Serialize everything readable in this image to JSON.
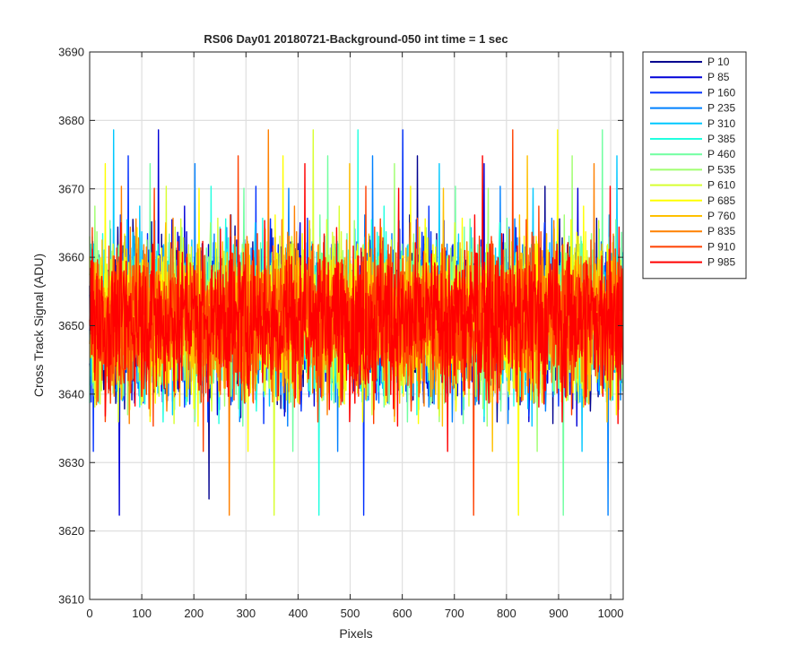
{
  "chart_data": {
    "type": "line",
    "title": "RS06 Day01 20180721-Background-050 int time = 1 sec",
    "xlabel": "Pixels",
    "ylabel": "Cross Track Signal (ADU)",
    "xlim": [
      0,
      1024
    ],
    "ylim": [
      3610,
      3690
    ],
    "xticks": [
      0,
      100,
      200,
      300,
      400,
      500,
      600,
      700,
      800,
      900,
      1000
    ],
    "yticks": [
      3610,
      3620,
      3630,
      3640,
      3650,
      3660,
      3670,
      3680,
      3690
    ],
    "xtick_labels": [
      "0",
      "100",
      "200",
      "300",
      "400",
      "500",
      "600",
      "700",
      "800",
      "900",
      "1000"
    ],
    "ytick_labels": [
      "3610",
      "3620",
      "3630",
      "3640",
      "3650",
      "3660",
      "3670",
      "3680",
      "3690"
    ],
    "grid": true,
    "legend_position": "outside-top-right",
    "series_mean": 3651,
    "series_noise_amplitude": 13,
    "series": [
      {
        "name": "P 10",
        "color": "#00008f"
      },
      {
        "name": "P 85",
        "color": "#0000d8"
      },
      {
        "name": "P 160",
        "color": "#0030ff"
      },
      {
        "name": "P 235",
        "color": "#0080ff"
      },
      {
        "name": "P 310",
        "color": "#00c8ff"
      },
      {
        "name": "P 385",
        "color": "#20ffdf"
      },
      {
        "name": "P 460",
        "color": "#70ffa0"
      },
      {
        "name": "P 535",
        "color": "#a0ff70"
      },
      {
        "name": "P 610",
        "color": "#d8ff30"
      },
      {
        "name": "P 685",
        "color": "#ffff00"
      },
      {
        "name": "P 760",
        "color": "#ffc000"
      },
      {
        "name": "P 835",
        "color": "#ff8000"
      },
      {
        "name": "P 910",
        "color": "#ff4000"
      },
      {
        "name": "P 985",
        "color": "#ff0000"
      }
    ]
  }
}
